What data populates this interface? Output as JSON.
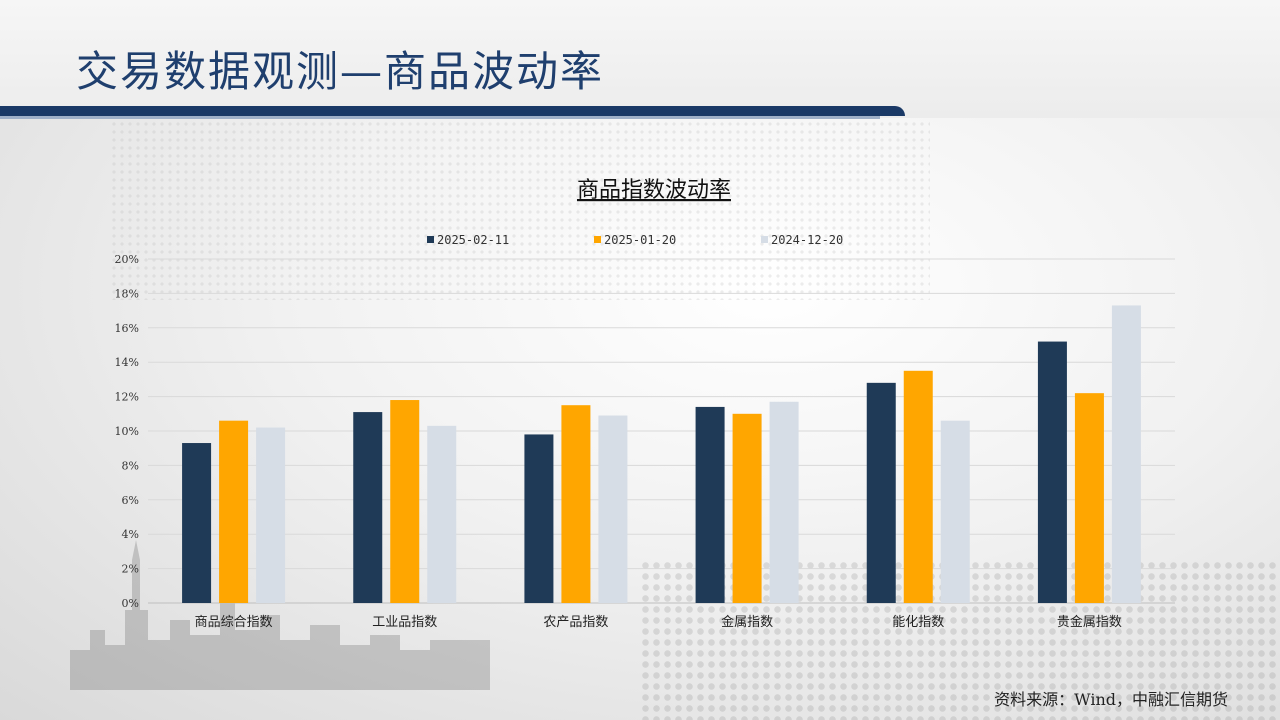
{
  "page": {
    "title": "交易数据观测—商品波动率",
    "source": "资料来源：Wind，中融汇信期货"
  },
  "colors": {
    "header_bar": "#1a3966",
    "title_text": "#1f3f6e",
    "series": [
      "#1f3a57",
      "#ffa600",
      "#d6dde6"
    ]
  },
  "chart_data": {
    "type": "bar",
    "title": "商品指数波动率",
    "categories": [
      "商品综合指数",
      "工业品指数",
      "农产品指数",
      "金属指数",
      "能化指数",
      "贵金属指数"
    ],
    "series": [
      {
        "name": "2025-02-11",
        "values": [
          9.3,
          11.1,
          9.8,
          11.4,
          12.8,
          15.2
        ]
      },
      {
        "name": "2025-01-20",
        "values": [
          10.6,
          11.8,
          11.5,
          11.0,
          13.5,
          12.2
        ]
      },
      {
        "name": "2024-12-20",
        "values": [
          10.2,
          10.3,
          10.9,
          11.7,
          10.6,
          17.3
        ]
      }
    ],
    "yticks": [
      "0%",
      "2%",
      "4%",
      "6%",
      "8%",
      "10%",
      "12%",
      "14%",
      "16%",
      "18%",
      "20%"
    ],
    "ylim": [
      0,
      20
    ],
    "grid": true,
    "legend": "top"
  }
}
